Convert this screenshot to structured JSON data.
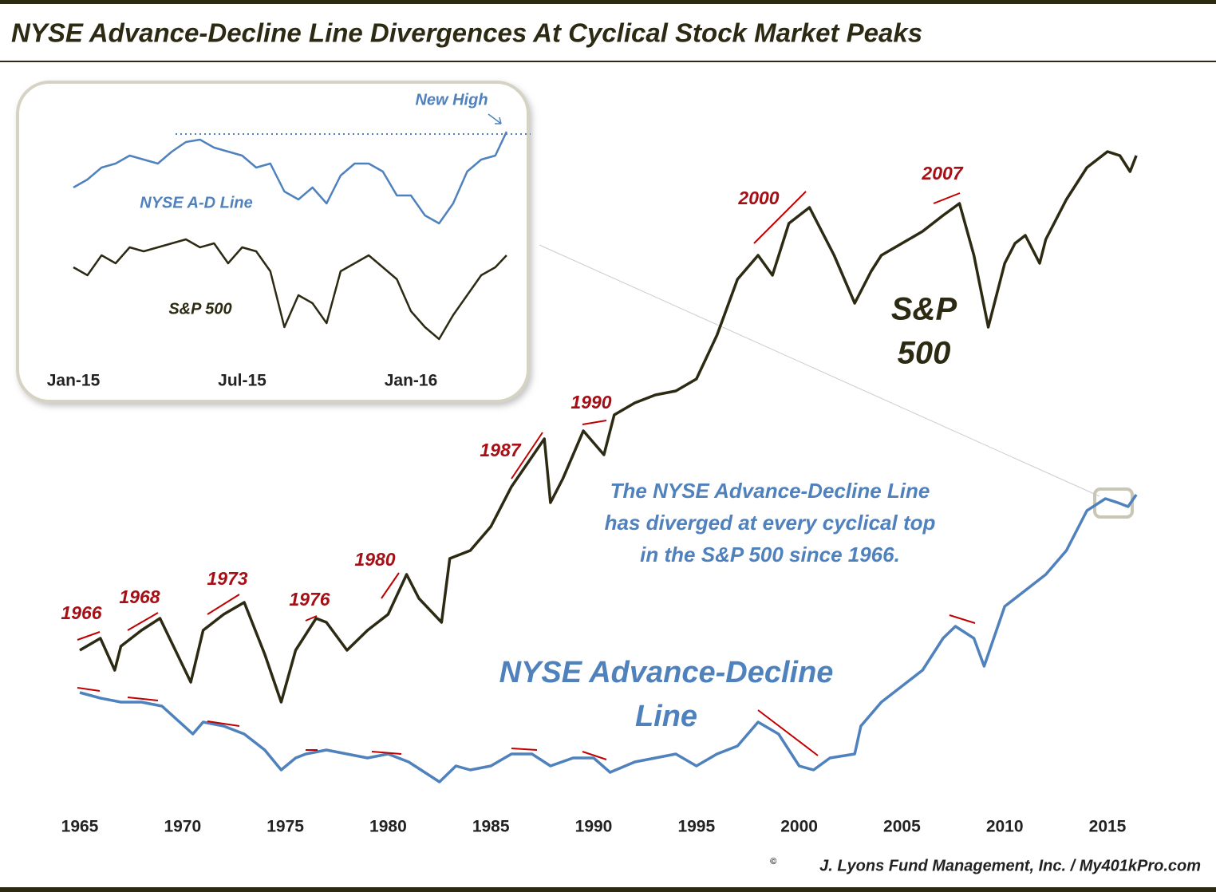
{
  "chart_data": [
    {
      "type": "line",
      "title": "NYSE Advance-Decline Line Divergences At Cyclical Stock Market Peaks",
      "xlim": [
        1965,
        2016.5
      ],
      "xticks": [
        1965,
        1970,
        1975,
        1980,
        1985,
        1990,
        1995,
        2000,
        2005,
        2010,
        2015
      ],
      "ylim": [
        0,
        100
      ],
      "series": [
        {
          "name": "S&P 500",
          "color": "#2d2a14",
          "x": [
            1965,
            1966,
            1966.7,
            1967,
            1968,
            1968.9,
            1970.4,
            1971,
            1972,
            1973,
            1974,
            1974.8,
            1975.5,
            1976.5,
            1977,
            1978,
            1979,
            1980,
            1980.9,
            1981.5,
            1982.6,
            1983,
            1984,
            1985,
            1986,
            1987.6,
            1987.9,
            1988.5,
            1989.5,
            1990.5,
            1991,
            1992,
            1993,
            1994,
            1995,
            1996,
            1997,
            1998,
            1998.7,
            1999.5,
            2000.5,
            2001.7,
            2002.7,
            2003.5,
            2004,
            2005,
            2006,
            2007,
            2007.8,
            2008.5,
            2009.2,
            2010,
            2010.5,
            2011,
            2011.7,
            2012,
            2013,
            2014,
            2015,
            2015.6,
            2016.1,
            2016.4
          ],
          "values": [
            23.5,
            25,
            21,
            24,
            26,
            27.5,
            19.5,
            26,
            28,
            29.5,
            23,
            17,
            23.5,
            27.5,
            27,
            23.5,
            26,
            28,
            33,
            30,
            27,
            35,
            36,
            39,
            44,
            50,
            42,
            45,
            51,
            48,
            53,
            54.5,
            55.5,
            56,
            57.5,
            63,
            70,
            73,
            70.5,
            77,
            79,
            73,
            67,
            71,
            73,
            74.5,
            76,
            78,
            79.5,
            73,
            64,
            72,
            74.5,
            75.5,
            72,
            75,
            80,
            84,
            86,
            85.5,
            83.5,
            85.5
          ]
        },
        {
          "name": "NYSE Advance-Decline Line",
          "color": "#4f81bd",
          "x": [
            1965,
            1966,
            1967,
            1968,
            1969,
            1970.5,
            1971,
            1972,
            1973,
            1974,
            1974.8,
            1975.5,
            1976,
            1977,
            1978,
            1979,
            1980,
            1981,
            1982.5,
            1983.3,
            1984,
            1985,
            1986,
            1987,
            1987.9,
            1989,
            1990,
            1990.8,
            1992,
            1993,
            1994,
            1995,
            1996,
            1997,
            1998,
            1999,
            2000,
            2000.7,
            2001.5,
            2002.7,
            2003,
            2004,
            2005,
            2006,
            2007,
            2007.6,
            2008.5,
            2009,
            2010,
            2011,
            2012,
            2013,
            2014,
            2014.9,
            2015.5,
            2016,
            2016.4
          ],
          "values": [
            18.2,
            17.5,
            17,
            17,
            16.5,
            13,
            14.5,
            14,
            13,
            11,
            8.5,
            10,
            10.5,
            11,
            10.5,
            10,
            10.5,
            9.5,
            7,
            9,
            8.5,
            9,
            10.5,
            10.5,
            9,
            10,
            10,
            8.2,
            9.5,
            10,
            10.5,
            9,
            10.5,
            11.5,
            14.5,
            13,
            9,
            8.5,
            10,
            10.5,
            14,
            17,
            19,
            21,
            25,
            26.5,
            25,
            21.5,
            29,
            31,
            33,
            36,
            41,
            42.5,
            42,
            41.5,
            43
          ]
        }
      ],
      "annotations": [
        "1966",
        "1968",
        "1973",
        "1976",
        "1980",
        "1987",
        "1990",
        "2000",
        "2007"
      ],
      "sp_label": [
        "S&P",
        "500"
      ],
      "ad_label": [
        "NYSE Advance-Decline",
        "Line"
      ],
      "note": [
        "The NYSE Advance-Decline  Line",
        "has diverged at every cyclical top",
        "in the S&P 500 since 1966."
      ],
      "credit": "J. Lyons Fund Management, Inc. / My401kPro.com"
    },
    {
      "type": "line",
      "xlim": [
        0,
        15.5
      ],
      "xticks": [
        {
          "value": 0,
          "label": "Jan-15"
        },
        {
          "value": 6,
          "label": "Jul-15"
        },
        {
          "value": 12,
          "label": "Jan-16"
        }
      ],
      "ylim": [
        0,
        340
      ],
      "series": [
        {
          "name": "NYSE A-D Line",
          "color": "#4f81bd",
          "x": [
            0,
            0.5,
            1,
            1.5,
            2,
            2.5,
            3,
            3.5,
            4,
            4.5,
            5,
            5.5,
            6,
            6.5,
            7,
            7.5,
            8,
            8.5,
            9,
            9.5,
            10,
            10.5,
            11,
            11.5,
            12,
            12.5,
            13,
            13.5,
            14,
            14.5,
            15,
            15.4
          ],
          "values": [
            235,
            245,
            260,
            265,
            275,
            270,
            265,
            280,
            292,
            295,
            285,
            280,
            275,
            260,
            265,
            230,
            220,
            235,
            215,
            250,
            265,
            265,
            255,
            225,
            225,
            200,
            190,
            215,
            255,
            270,
            275,
            305
          ]
        },
        {
          "name": "S&P 500",
          "color": "#2d2a14",
          "x": [
            0,
            0.5,
            1,
            1.5,
            2,
            2.5,
            3,
            3.5,
            4,
            4.5,
            5,
            5.5,
            6,
            6.5,
            7,
            7.5,
            8,
            8.5,
            9,
            9.5,
            10,
            10.5,
            11,
            11.5,
            12,
            12.5,
            13,
            13.5,
            14,
            14.5,
            15,
            15.4
          ],
          "values": [
            135,
            125,
            150,
            140,
            160,
            155,
            160,
            165,
            170,
            160,
            165,
            140,
            160,
            155,
            130,
            60,
            100,
            90,
            65,
            130,
            140,
            150,
            135,
            120,
            80,
            60,
            45,
            75,
            100,
            125,
            135,
            150
          ]
        }
      ],
      "annotation": "New High"
    }
  ]
}
